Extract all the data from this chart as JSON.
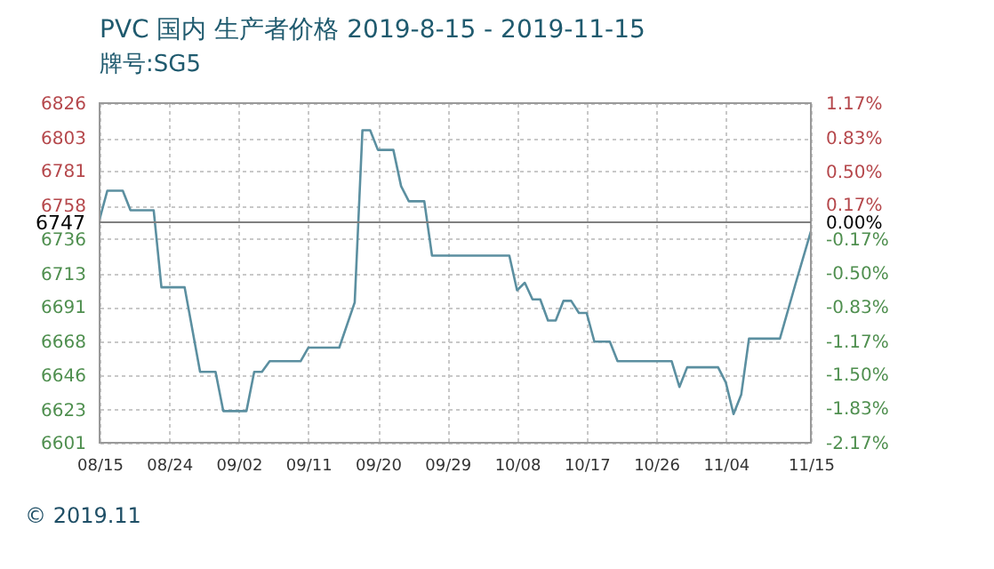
{
  "chart_data": {
    "type": "line",
    "title": "PVC 国内 生产者价格 2019-8-15 - 2019-11-15",
    "subtitle": "牌号:SG5",
    "x": [
      "2019-08-15",
      "2019-08-16",
      "2019-08-18",
      "2019-08-19",
      "2019-08-22",
      "2019-08-23",
      "2019-08-26",
      "2019-08-28",
      "2019-08-30",
      "2019-08-31",
      "2019-09-03",
      "2019-09-04",
      "2019-09-05",
      "2019-09-06",
      "2019-09-10",
      "2019-09-11",
      "2019-09-15",
      "2019-09-17",
      "2019-09-18",
      "2019-09-19",
      "2019-09-20",
      "2019-09-22",
      "2019-09-23",
      "2019-09-24",
      "2019-09-26",
      "2019-09-27",
      "2019-10-07",
      "2019-10-08",
      "2019-10-09",
      "2019-10-10",
      "2019-10-11",
      "2019-10-12",
      "2019-10-13",
      "2019-10-14",
      "2019-10-15",
      "2019-10-16",
      "2019-10-17",
      "2019-10-18",
      "2019-10-20",
      "2019-10-21",
      "2019-10-28",
      "2019-10-29",
      "2019-10-30",
      "2019-11-03",
      "2019-11-04",
      "2019-11-05",
      "2019-11-06",
      "2019-11-07",
      "2019-11-11",
      "2019-11-13",
      "2019-11-15"
    ],
    "series": [
      {
        "color": "#5b8fa0",
        "values": [
          6749,
          6768,
          6768,
          6755,
          6755,
          6704,
          6704,
          6648,
          6648,
          6622,
          6622,
          6648,
          6648,
          6655,
          6655,
          6664,
          6664,
          6694,
          6808,
          6808,
          6795,
          6795,
          6771,
          6761,
          6761,
          6725,
          6725,
          6702,
          6707,
          6696,
          6696,
          6682,
          6682,
          6695,
          6695,
          6687,
          6687,
          6668,
          6668,
          6655,
          6655,
          6638,
          6651,
          6651,
          6641,
          6620,
          6633,
          6670,
          6670,
          6706,
          6741
        ]
      }
    ],
    "xlim": [
      "2019-08-15",
      "2019-11-15"
    ],
    "xticks": [
      {
        "value": "2019-08-15",
        "label": "08/15"
      },
      {
        "value": "2019-08-24",
        "label": "08/24"
      },
      {
        "value": "2019-09-02",
        "label": "09/02"
      },
      {
        "value": "2019-09-11",
        "label": "09/11"
      },
      {
        "value": "2019-09-20",
        "label": "09/20"
      },
      {
        "value": "2019-09-29",
        "label": "09/29"
      },
      {
        "value": "2019-10-08",
        "label": "10/08"
      },
      {
        "value": "2019-10-17",
        "label": "10/17"
      },
      {
        "value": "2019-10-26",
        "label": "10/26"
      },
      {
        "value": "2019-11-04",
        "label": "11/04"
      },
      {
        "value": "2019-11-15",
        "label": "11/15"
      }
    ],
    "ylim": [
      6601,
      6826
    ],
    "yticks": [
      6601,
      6623,
      6646,
      6668,
      6691,
      6713,
      6736,
      6758,
      6781,
      6803,
      6826
    ],
    "y2lim": [
      -2.17,
      1.17
    ],
    "y2ticks": [
      {
        "value": -2.17,
        "label": "-2.17%"
      },
      {
        "value": -1.83,
        "label": "-1.83%"
      },
      {
        "value": -1.5,
        "label": "-1.50%"
      },
      {
        "value": -1.17,
        "label": "-1.17%"
      },
      {
        "value": -0.83,
        "label": "-0.83%"
      },
      {
        "value": -0.5,
        "label": "-0.50%"
      },
      {
        "value": -0.17,
        "label": "-0.17%"
      },
      {
        "value": 0,
        "label": "0.00%"
      },
      {
        "value": 0.17,
        "label": "0.17%"
      },
      {
        "value": 0.5,
        "label": "0.50%"
      },
      {
        "value": 0.83,
        "label": "0.83%"
      },
      {
        "value": 1.17,
        "label": "1.17%"
      }
    ],
    "ref_lines": [
      {
        "axis": "y",
        "value": 6747,
        "label": "6747",
        "color": "#808080"
      }
    ],
    "annotations": [
      "© 2019.11"
    ],
    "grid": true,
    "marker": "none",
    "line_style": "solid"
  }
}
